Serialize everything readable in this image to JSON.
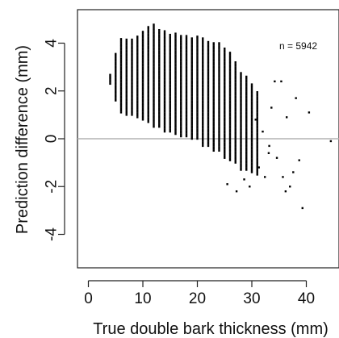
{
  "chart_data": {
    "type": "scatter",
    "title": "",
    "xlabel": "True double bark thickness (mm)",
    "ylabel": "Prediction difference (mm)",
    "xlim": [
      -2,
      46
    ],
    "ylim": [
      -5.4,
      5.4
    ],
    "x_ticks": [
      0,
      10,
      20,
      30,
      40
    ],
    "y_ticks": [
      -4,
      -2,
      0,
      2,
      4
    ],
    "reference_line": {
      "y": 0,
      "color": "#b3b3b3"
    },
    "annotation": "n = 5942",
    "n": 5942,
    "point_color": "#000000",
    "columns": [
      {
        "x": 4,
        "ymin": 2.3,
        "ymax": 2.7
      },
      {
        "x": 5,
        "ymin": 1.6,
        "ymax": 3.6
      },
      {
        "x": 6,
        "ymin": 1.1,
        "ymax": 4.2
      },
      {
        "x": 7,
        "ymin": 1.0,
        "ymax": 4.2
      },
      {
        "x": 8,
        "ymin": 1.0,
        "ymax": 4.2
      },
      {
        "x": 9,
        "ymin": 0.9,
        "ymax": 4.3
      },
      {
        "x": 10,
        "ymin": 0.8,
        "ymax": 4.5
      },
      {
        "x": 11,
        "ymin": 0.7,
        "ymax": 4.7
      },
      {
        "x": 12,
        "ymin": 0.5,
        "ymax": 4.8
      },
      {
        "x": 13,
        "ymin": 0.5,
        "ymax": 4.6
      },
      {
        "x": 14,
        "ymin": 0.3,
        "ymax": 4.5
      },
      {
        "x": 15,
        "ymin": 0.3,
        "ymax": 4.4
      },
      {
        "x": 16,
        "ymin": 0.2,
        "ymax": 4.4
      },
      {
        "x": 17,
        "ymin": 0.1,
        "ymax": 4.3
      },
      {
        "x": 18,
        "ymin": 0.1,
        "ymax": 4.3
      },
      {
        "x": 19,
        "ymin": 0.0,
        "ymax": 4.2
      },
      {
        "x": 20,
        "ymin": 0.0,
        "ymax": 4.3
      },
      {
        "x": 21,
        "ymin": -0.3,
        "ymax": 4.2
      },
      {
        "x": 22,
        "ymin": -0.3,
        "ymax": 4.1
      },
      {
        "x": 23,
        "ymin": -0.5,
        "ymax": 4.0
      },
      {
        "x": 24,
        "ymin": -0.5,
        "ymax": 4.0
      },
      {
        "x": 25,
        "ymin": -0.8,
        "ymax": 3.8
      },
      {
        "x": 26,
        "ymin": -0.9,
        "ymax": 3.6
      },
      {
        "x": 27,
        "ymin": -1.0,
        "ymax": 3.2
      },
      {
        "x": 28,
        "ymin": -1.3,
        "ymax": 2.8
      },
      {
        "x": 29,
        "ymin": -1.3,
        "ymax": 2.6
      },
      {
        "x": 30,
        "ymin": -1.4,
        "ymax": 2.3
      },
      {
        "x": 31,
        "ymin": -1.5,
        "ymax": 2.0
      }
    ],
    "outliers": [
      {
        "x": 25.5,
        "y": -1.9
      },
      {
        "x": 27.2,
        "y": -2.2
      },
      {
        "x": 28.6,
        "y": -1.7
      },
      {
        "x": 29.6,
        "y": -2.0
      },
      {
        "x": 31.3,
        "y": -1.2
      },
      {
        "x": 32.4,
        "y": -1.6
      },
      {
        "x": 33.2,
        "y": -0.3
      },
      {
        "x": 33.6,
        "y": 1.3
      },
      {
        "x": 34.2,
        "y": 2.4
      },
      {
        "x": 34.6,
        "y": -0.8
      },
      {
        "x": 35.4,
        "y": 2.4
      },
      {
        "x": 35.7,
        "y": -1.6
      },
      {
        "x": 36.2,
        "y": -2.2
      },
      {
        "x": 37.0,
        "y": -2.0
      },
      {
        "x": 37.6,
        "y": -1.4
      },
      {
        "x": 38.1,
        "y": 1.7
      },
      {
        "x": 39.3,
        "y": -2.9
      },
      {
        "x": 40.5,
        "y": 1.1
      },
      {
        "x": 44.5,
        "y": -0.1
      },
      {
        "x": 30.7,
        "y": 0.8
      },
      {
        "x": 32.0,
        "y": 0.3
      },
      {
        "x": 33.1,
        "y": -0.6
      },
      {
        "x": 36.4,
        "y": 0.9
      },
      {
        "x": 38.7,
        "y": -0.9
      }
    ]
  }
}
